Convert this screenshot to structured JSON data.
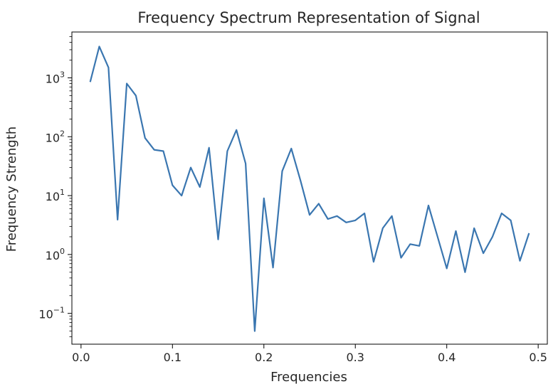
{
  "chart_data": {
    "type": "line",
    "title": "Frequency Spectrum Representation of Signal",
    "xlabel": "Frequencies",
    "ylabel": "Frequency Strength",
    "xlim": [
      -0.01,
      0.51
    ],
    "ylim": [
      0.03,
      6000
    ],
    "yscale": "log",
    "grid": false,
    "color": "#3a76b0",
    "xticks": [
      0.0,
      0.1,
      0.2,
      0.3,
      0.4,
      0.5
    ],
    "xtick_labels": [
      "0.0",
      "0.1",
      "0.2",
      "0.3",
      "0.4",
      "0.5"
    ],
    "yticks": [
      {
        "value": 0.1,
        "base": "10",
        "exp": "−1"
      },
      {
        "value": 1,
        "base": "10",
        "exp": "0"
      },
      {
        "value": 10,
        "base": "10",
        "exp": "1"
      },
      {
        "value": 100,
        "base": "10",
        "exp": "2"
      },
      {
        "value": 1000,
        "base": "10",
        "exp": "3"
      }
    ],
    "x": [
      0.01,
      0.02,
      0.03,
      0.04,
      0.05,
      0.06,
      0.07,
      0.08,
      0.09,
      0.1,
      0.11,
      0.12,
      0.13,
      0.14,
      0.15,
      0.16,
      0.17,
      0.18,
      0.19,
      0.2,
      0.21,
      0.22,
      0.23,
      0.24,
      0.25,
      0.26,
      0.27,
      0.28,
      0.29,
      0.3,
      0.31,
      0.32,
      0.33,
      0.34,
      0.35,
      0.36,
      0.37,
      0.38,
      0.39,
      0.4,
      0.41,
      0.42,
      0.43,
      0.44,
      0.45,
      0.46,
      0.47,
      0.48,
      0.49
    ],
    "y": [
      850,
      3400,
      1500,
      3.9,
      800,
      500,
      95,
      60,
      57,
      15,
      10,
      30,
      14,
      65,
      1.8,
      57,
      130,
      35,
      0.05,
      9,
      0.6,
      26,
      63,
      18,
      4.7,
      7.3,
      4.0,
      4.5,
      3.5,
      3.8,
      5.0,
      0.75,
      2.8,
      4.5,
      0.88,
      1.5,
      1.4,
      6.8,
      2.0,
      0.58,
      2.5,
      0.5,
      2.8,
      1.05,
      2.0,
      5.0,
      3.8,
      0.78,
      2.3
    ]
  }
}
